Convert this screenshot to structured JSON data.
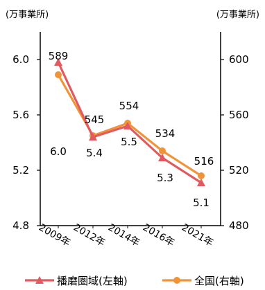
{
  "chart_data": {
    "type": "line",
    "categories": [
      "2009年",
      "2012年",
      "2014年",
      "2016年",
      "2021年"
    ],
    "left_axis": {
      "unit_label": "(万事業所)",
      "ticks": [
        "4.8",
        "5.2",
        "5.6",
        "6.0"
      ],
      "ylim": [
        4.8,
        6.2
      ]
    },
    "right_axis": {
      "unit_label": "(万事業所)",
      "ticks": [
        "480",
        "520",
        "560",
        "600"
      ],
      "ylim": [
        480,
        620
      ]
    },
    "series": [
      {
        "name": "播磨圏域(左軸)",
        "axis": "left",
        "values": [
          5.98,
          5.44,
          5.52,
          5.29,
          5.11
        ],
        "labels": [
          "6.0",
          "5.4",
          "5.5",
          "5.3",
          "5.1"
        ],
        "color": "#e05a5f",
        "marker": "triangle"
      },
      {
        "name": "全国(右軸)",
        "axis": "right",
        "values": [
          589,
          545,
          554,
          534,
          516
        ],
        "labels": [
          "589",
          "545",
          "554",
          "534",
          "516"
        ],
        "color": "#f0943a",
        "marker": "circle"
      }
    ],
    "grid": false,
    "legend_position": "bottom"
  }
}
